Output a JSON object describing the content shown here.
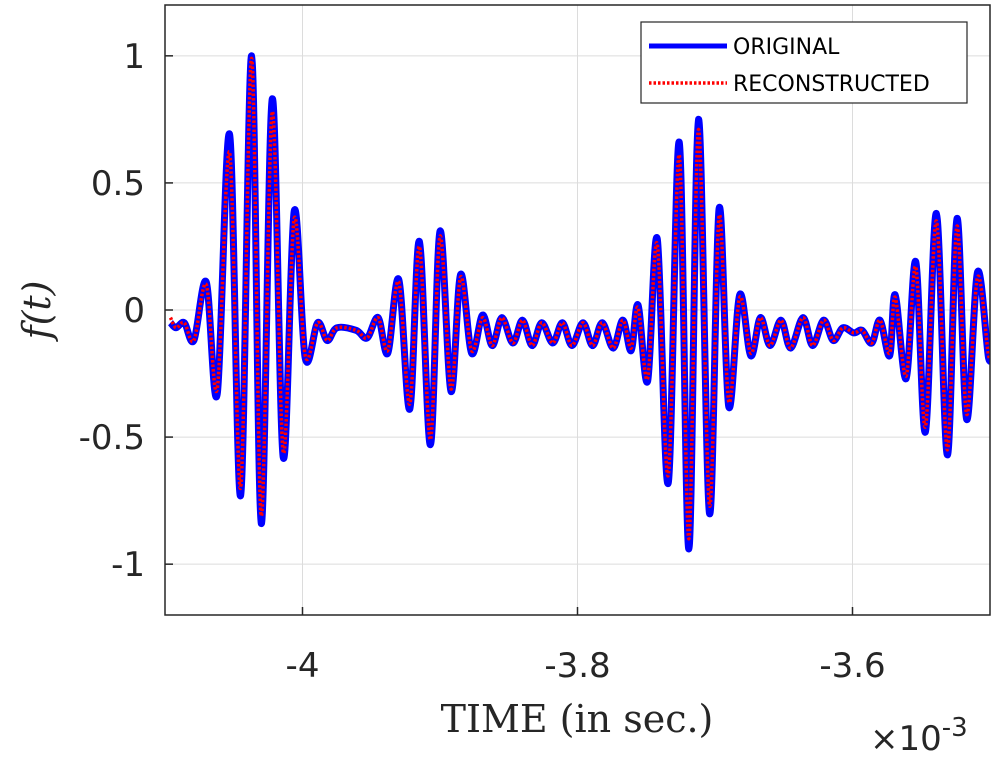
{
  "chart_data": {
    "type": "line",
    "xlabel": "TIME (in sec.)",
    "ylabel": "f(t)",
    "x_multiplier": {
      "base": "×10",
      "exponent": "-3"
    },
    "x": [
      -4.096,
      -4.092,
      -4.086,
      -4.079,
      -4.07,
      -4.062,
      -4.053,
      -4.045,
      -4.037,
      -4.03,
      -4.022,
      -4.014,
      -4.006,
      -3.998,
      -3.989,
      -3.982,
      -3.975,
      -3.961,
      -3.953,
      -3.945,
      -3.938,
      -3.93,
      -3.922,
      -3.915,
      -3.907,
      -3.9,
      -3.892,
      -3.885,
      -3.877,
      -3.869,
      -3.862,
      -3.855,
      -3.847,
      -3.84,
      -3.833,
      -3.826,
      -3.818,
      -3.811,
      -3.804,
      -3.796,
      -3.789,
      -3.782,
      -3.774,
      -3.767,
      -3.761,
      -3.756,
      -3.749,
      -3.742,
      -3.734,
      -3.726,
      -3.719,
      -3.712,
      -3.704,
      -3.697,
      -3.69,
      -3.682,
      -3.674,
      -3.667,
      -3.66,
      -3.652,
      -3.645,
      -3.636,
      -3.629,
      -3.621,
      -3.614,
      -3.607,
      -3.599,
      -3.593,
      -3.586,
      -3.58,
      -3.573,
      -3.569,
      -3.561,
      -3.554,
      -3.547,
      -3.539,
      -3.531,
      -3.524,
      -3.517,
      -3.509,
      -3.501,
      -3.498
    ],
    "series": [
      {
        "name": "ORIGINAL",
        "color": "#0000ff",
        "style": "solid",
        "values": [
          -0.05,
          -0.07,
          -0.05,
          -0.12,
          0.11,
          -0.33,
          0.69,
          -0.73,
          1.0,
          -0.84,
          0.83,
          -0.58,
          0.39,
          -0.19,
          -0.05,
          -0.12,
          -0.07,
          -0.08,
          -0.11,
          -0.03,
          -0.17,
          0.12,
          -0.39,
          0.27,
          -0.53,
          0.31,
          -0.32,
          0.14,
          -0.17,
          -0.02,
          -0.14,
          -0.03,
          -0.13,
          -0.04,
          -0.14,
          -0.05,
          -0.13,
          -0.05,
          -0.14,
          -0.05,
          -0.14,
          -0.05,
          -0.15,
          -0.04,
          -0.16,
          0.02,
          -0.28,
          0.28,
          -0.68,
          0.66,
          -0.94,
          0.75,
          -0.8,
          0.4,
          -0.38,
          0.06,
          -0.18,
          -0.03,
          -0.14,
          -0.04,
          -0.15,
          -0.03,
          -0.14,
          -0.04,
          -0.12,
          -0.07,
          -0.09,
          -0.08,
          -0.13,
          -0.04,
          -0.18,
          0.06,
          -0.27,
          0.19,
          -0.48,
          0.38,
          -0.57,
          0.36,
          -0.43,
          0.15,
          -0.19,
          -0.12
        ]
      },
      {
        "name": "RECONSTRUCTED",
        "color": "#ff0000",
        "style": "dotted",
        "values": [
          -0.03,
          -0.07,
          -0.05,
          -0.12,
          0.1,
          -0.31,
          0.62,
          -0.7,
          0.99,
          -0.81,
          0.78,
          -0.56,
          0.36,
          -0.18,
          -0.05,
          -0.12,
          -0.07,
          -0.08,
          -0.11,
          -0.03,
          -0.16,
          0.11,
          -0.37,
          0.25,
          -0.51,
          0.29,
          -0.31,
          0.13,
          -0.16,
          -0.03,
          -0.14,
          -0.03,
          -0.13,
          -0.04,
          -0.14,
          -0.05,
          -0.13,
          -0.05,
          -0.14,
          -0.05,
          -0.14,
          -0.05,
          -0.15,
          -0.04,
          -0.15,
          0.01,
          -0.27,
          0.26,
          -0.65,
          0.61,
          -0.9,
          0.71,
          -0.77,
          0.37,
          -0.36,
          0.05,
          -0.17,
          -0.03,
          -0.14,
          -0.04,
          -0.15,
          -0.03,
          -0.14,
          -0.04,
          -0.12,
          -0.07,
          -0.09,
          -0.08,
          -0.13,
          -0.04,
          -0.17,
          0.05,
          -0.26,
          0.17,
          -0.46,
          0.35,
          -0.55,
          0.33,
          -0.41,
          0.13,
          -0.18,
          -0.12
        ]
      }
    ],
    "xlim": [
      -4.1,
      -3.5
    ],
    "xticks": [
      -4,
      -3.8,
      -3.6
    ],
    "ylim": [
      -1.2,
      1.2
    ],
    "yticks": [
      -1,
      -0.5,
      0,
      0.5,
      1
    ],
    "grid": true,
    "legend": "northeast"
  }
}
